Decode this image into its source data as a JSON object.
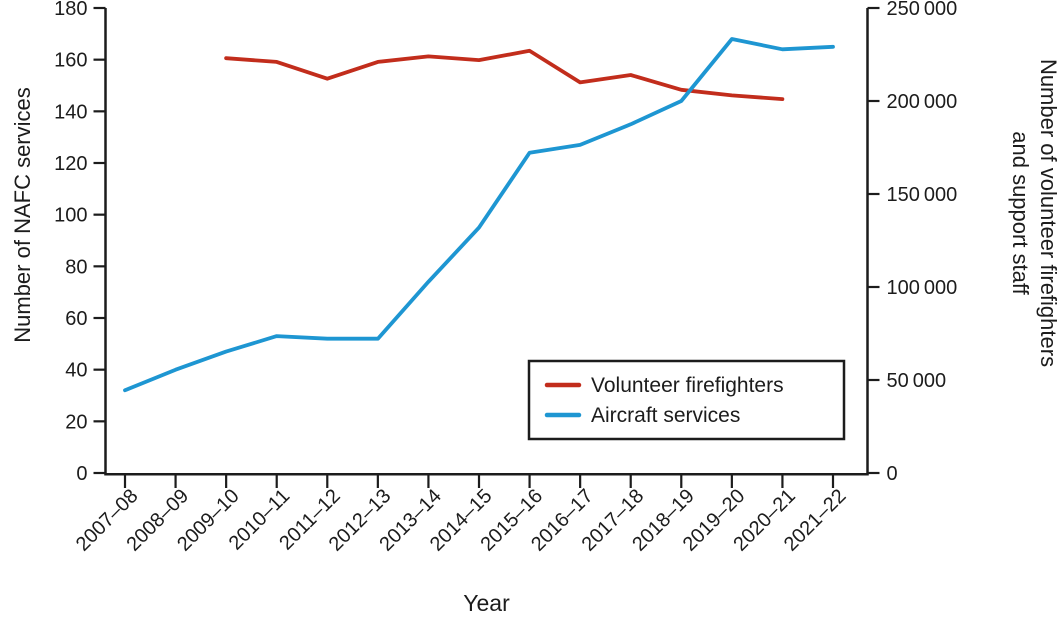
{
  "page": {
    "background": "#ffffff",
    "text_color": "#1c1c1c"
  },
  "chart_data": {
    "type": "line",
    "title": "",
    "xlabel": "Year",
    "grid": false,
    "categories": [
      "2007–08",
      "2008–09",
      "2009–10",
      "2010–11",
      "2011–12",
      "2012–13",
      "2013–14",
      "2014–15",
      "2015–16",
      "2016–17",
      "2017–18",
      "2018–19",
      "2019–20",
      "2020–21",
      "2021–22"
    ],
    "axes": {
      "left": {
        "label": "Number of NAFC services",
        "min": 0,
        "max": 180,
        "ticks": [
          0,
          20,
          40,
          60,
          80,
          100,
          120,
          140,
          160,
          180
        ],
        "tick_labels": [
          "0",
          "20",
          "40",
          "60",
          "80",
          "100",
          "120",
          "140",
          "160",
          "180"
        ]
      },
      "right": {
        "label_lines": [
          "Number of volunteer firefighters",
          "and support staff"
        ],
        "min": 0,
        "max": 250000,
        "ticks": [
          0,
          50000,
          100000,
          150000,
          200000,
          250000
        ],
        "tick_labels": [
          "0",
          "50 000",
          "100 000",
          "150 000",
          "200 000",
          "250 000"
        ]
      }
    },
    "series": [
      {
        "name": "Volunteer firefighters",
        "axis": "right",
        "color": "#c22d1c",
        "values": [
          null,
          null,
          223000,
          221000,
          212000,
          221000,
          224000,
          222000,
          227000,
          210000,
          214000,
          206000,
          203000,
          201000,
          null
        ]
      },
      {
        "name": "Aircraft services",
        "axis": "left",
        "color": "#1e96d2",
        "values": [
          32,
          40,
          47,
          53,
          52,
          52,
          74,
          95,
          124,
          127,
          135,
          144,
          168,
          164,
          165
        ]
      }
    ],
    "legend": {
      "position": "inside-bottom-right",
      "border_color": "#1c1c1c",
      "entries": [
        {
          "label": "Volunteer firefighters",
          "color": "#c22d1c"
        },
        {
          "label": "Aircraft services",
          "color": "#1e96d2"
        }
      ]
    }
  }
}
